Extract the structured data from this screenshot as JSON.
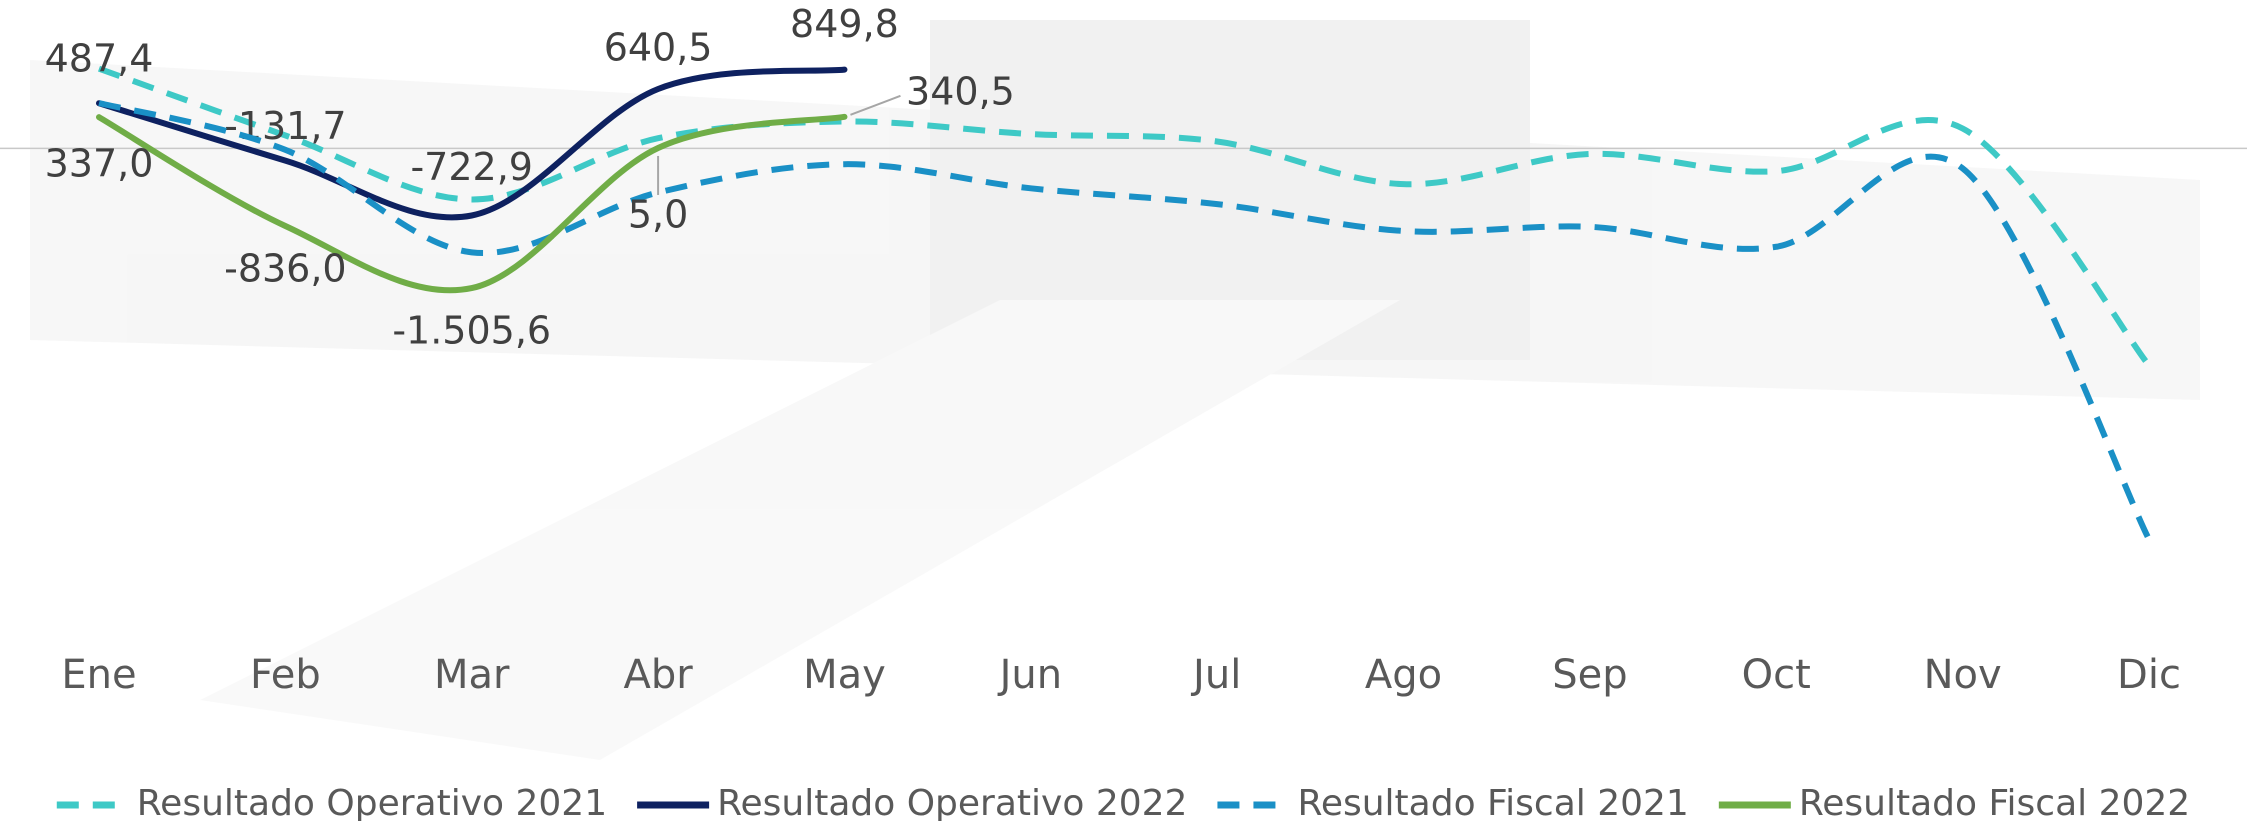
{
  "chart_data": {
    "type": "line",
    "categories": [
      "Ene",
      "Feb",
      "Mar",
      "Abr",
      "May",
      "Jun",
      "Jul",
      "Ago",
      "Sep",
      "Oct",
      "Nov",
      "Dic"
    ],
    "series": [
      {
        "name": "Resultado Operativo 2021",
        "color": "#3ec9c6",
        "line_style": "dashed",
        "values": [
          860,
          140,
          -550,
          110,
          290,
          155,
          75,
          -385,
          -60,
          -245,
          215,
          -2340
        ]
      },
      {
        "name": "Resultado Operativo 2022",
        "color": "#0e2160",
        "line_style": "solid",
        "values": [
          487.4,
          -131.7,
          -722.9,
          640.5,
          849.8,
          null,
          null,
          null,
          null,
          null,
          null,
          null
        ],
        "value_labels": [
          "487,4",
          "-131,7",
          "-722,9",
          "640,5",
          "849,8",
          null,
          null,
          null,
          null,
          null,
          null,
          null
        ]
      },
      {
        "name": "Resultado Fiscal 2021",
        "color": "#1a90c6",
        "line_style": "dashed",
        "values": [
          490,
          -15,
          -1120,
          -475,
          -170,
          -430,
          -600,
          -890,
          -845,
          -1060,
          -215,
          -4215
        ]
      },
      {
        "name": "Resultado Fiscal 2022",
        "color": "#70ad47",
        "line_style": "solid",
        "values": [
          337.0,
          -836.0,
          -1505.6,
          5.0,
          340.5,
          null,
          null,
          null,
          null,
          null,
          null,
          null
        ],
        "value_labels": [
          "337,0",
          "-836,0",
          "-1.505,6",
          "5,0",
          "340,5",
          null,
          null,
          null,
          null,
          null,
          null,
          null
        ]
      }
    ],
    "ylim": [
      -4900,
      1600
    ],
    "zero_line": true,
    "legend": "bottom"
  }
}
